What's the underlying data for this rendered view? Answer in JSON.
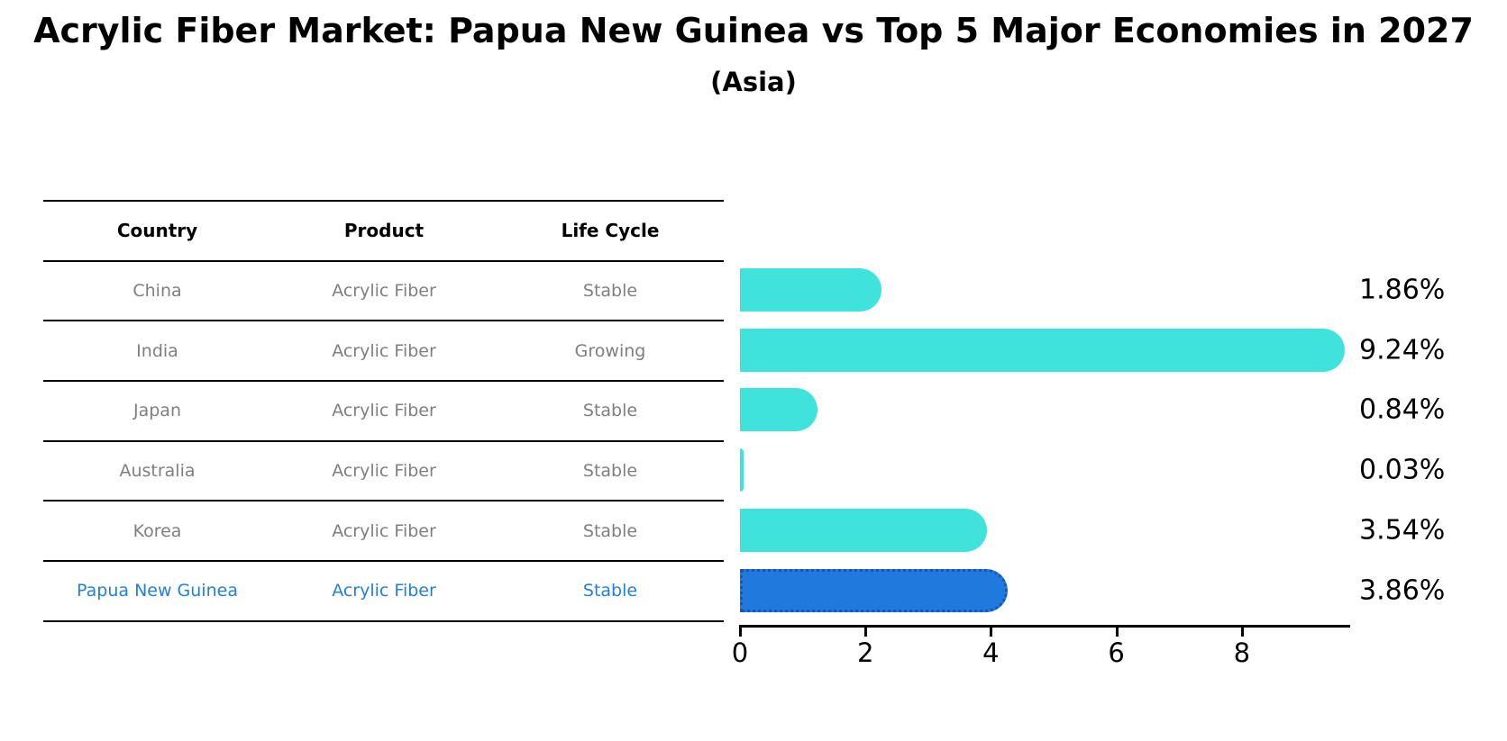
{
  "title": "Acrylic Fiber Market: Papua New Guinea vs Top 5 Major Economies in 2027",
  "subtitle": "(Asia)",
  "table": {
    "headers": [
      "Country",
      "Product",
      "Life Cycle"
    ],
    "rows": [
      {
        "country": "China",
        "product": "Acrylic Fiber",
        "life_cycle": "Stable"
      },
      {
        "country": "India",
        "product": "Acrylic Fiber",
        "life_cycle": "Growing"
      },
      {
        "country": "Japan",
        "product": "Acrylic Fiber",
        "life_cycle": "Stable"
      },
      {
        "country": "Australia",
        "product": "Acrylic Fiber",
        "life_cycle": "Stable"
      },
      {
        "country": "Korea",
        "product": "Acrylic Fiber",
        "life_cycle": "Stable"
      },
      {
        "country": "Papua New Guinea",
        "product": "Acrylic Fiber",
        "life_cycle": "Stable"
      }
    ]
  },
  "chart_data": {
    "type": "bar",
    "orientation": "horizontal",
    "title": "Acrylic Fiber Market: Papua New Guinea vs Top 5 Major Economies in 2027",
    "subtitle": "(Asia)",
    "categories": [
      "China",
      "India",
      "Japan",
      "Australia",
      "Korea",
      "Papua New Guinea"
    ],
    "values": [
      1.86,
      9.24,
      0.84,
      0.03,
      3.54,
      3.86
    ],
    "value_labels": [
      "1.86%",
      "9.24%",
      "0.84%",
      "0.03%",
      "3.54%",
      "3.86%"
    ],
    "x_ticks": [
      "0",
      "2",
      "4",
      "6",
      "8"
    ],
    "x_tick_values": [
      0,
      2,
      4,
      6,
      8
    ],
    "xlim": [
      0,
      9.73
    ],
    "grid": false,
    "legend": "none",
    "bar_color": "#40e3dc",
    "highlight_color": "#2079dc",
    "highlight_border_color": "#1753c4",
    "highlight_index": 5,
    "text_gray": "#7f7f7f",
    "text_highlight_blue": "#2380d5"
  }
}
